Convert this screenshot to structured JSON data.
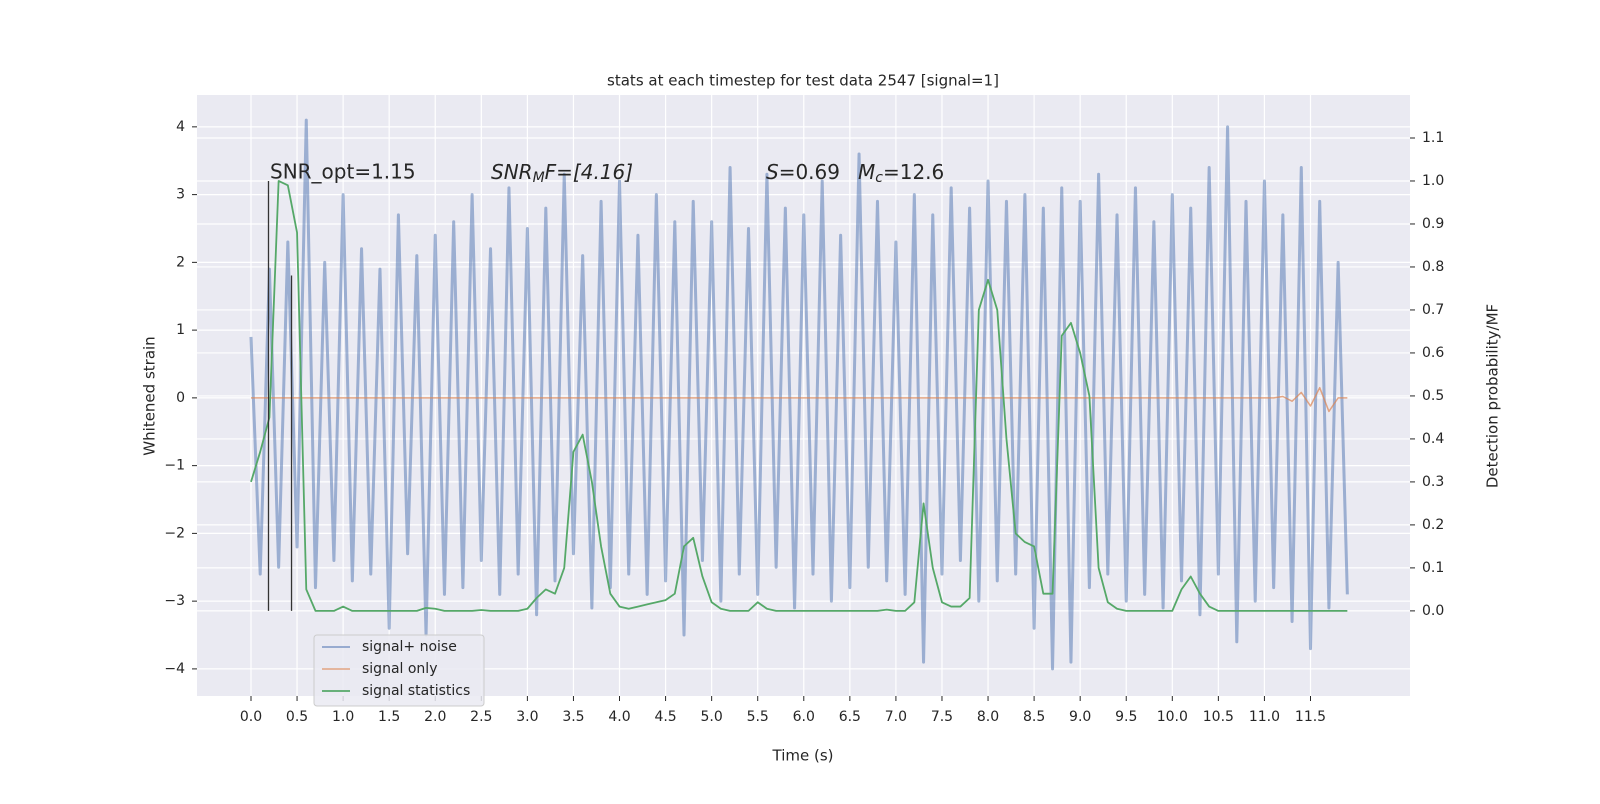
{
  "chart_data": {
    "type": "line",
    "title": "stats at each timestep for test data 2547 [signal=1]",
    "xlabel": "Time (s)",
    "ylabel": "Whitened strain",
    "y2label": "Detection probability/MF",
    "annotations": {
      "snr_opt": "SNR_opt=1.15",
      "snr_mf": {
        "main": "SNR",
        "sub": "M",
        "rest": "F=[4.16]"
      },
      "stats": {
        "s": "S",
        "s_value": "=0.69",
        "m": "M",
        "m_sub": "c",
        "m_value": "=12.6"
      }
    },
    "xlim": [
      -0.586,
      12.58
    ],
    "ylim": [
      -4.4,
      4.47
    ],
    "y2lim": [
      -0.198,
      1.2
    ],
    "xticks": [
      {
        "value": 0,
        "label": "0.0"
      },
      0.5,
      {
        "value": 1,
        "label": "1.0"
      },
      1.5,
      {
        "value": 2,
        "label": "2.0"
      },
      2.5,
      {
        "value": 3,
        "label": "3.0"
      },
      3.5,
      {
        "value": 4,
        "label": "4.0"
      },
      4.5,
      {
        "value": 5,
        "label": "5.0"
      },
      5.5,
      {
        "value": 6,
        "label": "6.0"
      },
      6.5,
      {
        "value": 7,
        "label": "7.0"
      },
      7.5,
      {
        "value": 8,
        "label": "8.0"
      },
      8.5,
      {
        "value": 9,
        "label": "9.0"
      },
      9.5,
      {
        "value": 10,
        "label": "10.0"
      },
      10.5,
      {
        "value": 11,
        "label": "11.0"
      },
      11.5
    ],
    "yticks": [
      {
        "value": -4,
        "label": "−4"
      },
      {
        "value": -3,
        "label": "−3"
      },
      {
        "value": -2,
        "label": "−2"
      },
      {
        "value": -1,
        "label": "−1"
      },
      0,
      1,
      2,
      3,
      4
    ],
    "y2ticks": [
      {
        "value": 0,
        "label": "0.0"
      },
      0.1,
      0.2,
      0.3,
      0.4,
      0.5,
      0.6,
      0.7,
      0.8,
      0.9,
      {
        "value": 1,
        "label": "1.0"
      },
      1.1
    ],
    "grid": true,
    "legend": "lower left",
    "x": [
      0,
      0.1,
      0.2,
      0.3,
      0.4,
      0.5,
      0.6,
      0.7,
      0.8,
      0.9,
      1,
      1.1,
      1.2,
      1.3,
      1.4,
      1.5,
      1.6,
      1.7,
      1.8,
      1.9,
      2,
      2.1,
      2.2,
      2.3,
      2.4,
      2.5,
      2.6,
      2.7,
      2.8,
      2.9,
      3,
      3.1,
      3.2,
      3.3,
      3.4,
      3.5,
      3.6,
      3.7,
      3.8,
      3.9,
      4,
      4.1,
      4.2,
      4.3,
      4.4,
      4.5,
      4.6,
      4.7,
      4.8,
      4.9,
      5,
      5.1,
      5.2,
      5.3,
      5.4,
      5.5,
      5.6,
      5.7,
      5.8,
      5.9,
      6,
      6.1,
      6.2,
      6.3,
      6.4,
      6.5,
      6.6,
      6.7,
      6.8,
      6.9,
      7,
      7.1,
      7.2,
      7.3,
      7.4,
      7.5,
      7.6,
      7.7,
      7.8,
      7.9,
      8,
      8.1,
      8.2,
      8.3,
      8.4,
      8.5,
      8.6,
      8.7,
      8.8,
      8.9,
      9,
      9.1,
      9.2,
      9.3,
      9.4,
      9.5,
      9.6,
      9.7,
      9.8,
      9.9,
      10,
      10.1,
      10.2,
      10.3,
      10.4,
      10.5,
      10.6,
      10.7,
      10.8,
      10.9,
      11,
      11.1,
      11.2,
      11.3,
      11.4,
      11.5,
      11.6,
      11.7,
      11.8,
      11.9
    ],
    "series": [
      {
        "name": "signal+ noise",
        "color": "#4c72b0",
        "axis": "y",
        "values": [
          0.9,
          -2.6,
          1.9,
          -2.5,
          2.3,
          -2.2,
          4.1,
          -2.8,
          2.0,
          -2.4,
          3.0,
          -2.7,
          2.2,
          -2.6,
          1.9,
          -3.4,
          2.7,
          -2.3,
          2.1,
          -3.5,
          2.4,
          -2.9,
          2.6,
          -2.8,
          3.0,
          -2.4,
          2.2,
          -2.9,
          3.1,
          -2.6,
          2.5,
          -3.2,
          2.8,
          -2.7,
          3.3,
          -2.3,
          2.1,
          -3.1,
          2.9,
          -2.8,
          3.2,
          -2.6,
          2.4,
          -2.9,
          3.0,
          -2.7,
          2.6,
          -3.5,
          2.9,
          -2.4,
          2.6,
          -3.0,
          3.4,
          -2.6,
          2.5,
          -2.9,
          3.3,
          -2.5,
          2.8,
          -3.1,
          2.7,
          -2.6,
          3.2,
          -3.0,
          2.4,
          -2.8,
          3.6,
          -2.5,
          2.9,
          -2.7,
          2.3,
          -2.9,
          3.0,
          -3.9,
          2.7,
          -2.6,
          3.1,
          -2.4,
          2.8,
          -3.0,
          3.2,
          -2.7,
          2.9,
          -2.6,
          3.0,
          -3.4,
          2.8,
          -4.0,
          3.1,
          -3.9,
          2.9,
          -2.8,
          3.3,
          -2.6,
          2.7,
          -3.0,
          3.1,
          -2.9,
          2.6,
          -3.1,
          3.0,
          -2.7,
          2.8,
          -3.2,
          3.4,
          -2.6,
          4.0,
          -3.6,
          2.9,
          -3.0,
          3.2,
          -2.8,
          2.7,
          -3.3,
          3.4,
          -3.7,
          2.9,
          -3.1,
          2.0,
          -2.9
        ]
      },
      {
        "name": "signal only",
        "color": "#dd8452",
        "axis": "y",
        "values": [
          0,
          0,
          0,
          0,
          0,
          0,
          0,
          0,
          0,
          0,
          0,
          0,
          0,
          0,
          0,
          0,
          0,
          0,
          0,
          0,
          0,
          0,
          0,
          0,
          0,
          0,
          0,
          0,
          0,
          0,
          0,
          0,
          0,
          0,
          0,
          0,
          0,
          0,
          0,
          0,
          0,
          0,
          0,
          0,
          0,
          0,
          0,
          0,
          0,
          0,
          0,
          0,
          0,
          0,
          0,
          0,
          0,
          0,
          0,
          0,
          0,
          0,
          0,
          0,
          0,
          0,
          0,
          0,
          0,
          0,
          0,
          0,
          0,
          0,
          0,
          0,
          0,
          0,
          0,
          0,
          0,
          0,
          0,
          0,
          0,
          0,
          0,
          0,
          0,
          0,
          0,
          0,
          0,
          0,
          0,
          0,
          0,
          0,
          0,
          0,
          0,
          0,
          0,
          0,
          0,
          0,
          0,
          0,
          0,
          0,
          0,
          0,
          0.02,
          -0.05,
          0.08,
          -0.12,
          0.15,
          -0.2,
          0,
          0
        ]
      },
      {
        "name": "signal statistics",
        "color": "#55a868",
        "axis": "y2",
        "values": [
          0.3,
          0.37,
          0.45,
          1.0,
          0.99,
          0.88,
          0.05,
          0,
          0,
          0,
          0.01,
          0,
          0,
          0,
          0,
          0,
          0,
          0,
          0,
          0.007,
          0.005,
          0,
          0,
          0,
          0,
          0.002,
          0,
          0,
          0,
          0,
          0.005,
          0.03,
          0.05,
          0.04,
          0.1,
          0.37,
          0.41,
          0.3,
          0.15,
          0.04,
          0.01,
          0.005,
          0.01,
          0.015,
          0.02,
          0.025,
          0.04,
          0.15,
          0.17,
          0.08,
          0.02,
          0.005,
          0,
          0,
          0,
          0.02,
          0.005,
          0,
          0,
          0,
          0,
          0,
          0,
          0,
          0,
          0,
          0,
          0,
          0,
          0.003,
          0,
          0,
          0.02,
          0.25,
          0.1,
          0.02,
          0.01,
          0.01,
          0.03,
          0.7,
          0.77,
          0.7,
          0.4,
          0.18,
          0.16,
          0.15,
          0.04,
          0.04,
          0.64,
          0.67,
          0.6,
          0.5,
          0.1,
          0.02,
          0.005,
          0,
          0,
          0,
          0,
          0,
          0,
          0.05,
          0.08,
          0.04,
          0.01,
          0,
          0,
          0,
          0,
          0,
          0,
          0,
          0,
          0,
          0,
          0,
          0,
          0,
          0,
          0
        ]
      }
    ],
    "vlines": {
      "x": [
        0.19,
        0.44
      ],
      "y2": [
        1.0,
        0.78
      ],
      "color": "#333333"
    }
  }
}
